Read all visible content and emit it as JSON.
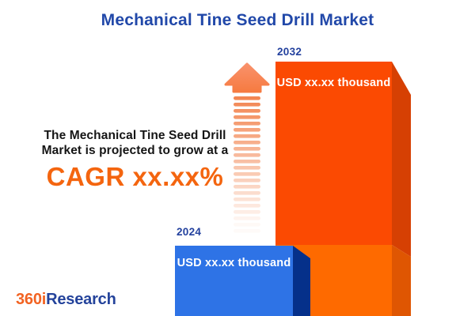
{
  "title": "Mechanical Tine Seed Drill Market",
  "description": {
    "line1": "The Mechanical Tine Seed Drill",
    "line2": "Market is projected to grow at a",
    "cagr": "CAGR xx.xx%"
  },
  "chart_data": {
    "type": "bar",
    "title": "Mechanical Tine Seed Drill Market",
    "categories": [
      "2024",
      "2032"
    ],
    "values": [
      "xx.xx",
      "xx.xx"
    ],
    "unit": "USD thousand",
    "value_labels": [
      "USD xx.xx thousand",
      "USD xx.xx thousand"
    ],
    "annotations": [
      "The Mechanical Tine Seed Drill Market is projected to grow at a CAGR xx.xx%"
    ],
    "legend": false,
    "grid": false,
    "bar_height_ratio_hint": [
      89,
      322
    ]
  },
  "bars": {
    "b2024": {
      "year": "2024",
      "value_label": "USD xx.xx thousand"
    },
    "b2032": {
      "year": "2032",
      "value_label": "USD xx.xx thousand"
    }
  },
  "arrow": {
    "meaning": "growth-upward-arrow",
    "stripe_count": 22,
    "stripe_color": "#F28049"
  },
  "logo": {
    "part1": "360i",
    "part2": "Research"
  },
  "colors": {
    "title-blue": "#2148A9",
    "label-navy": "#23419E",
    "text-black": "#151515",
    "cagr-orange": "#F4650F",
    "bar2032-front-top": "#FB4A02",
    "bar2032-front-bottom": "#FE6A00",
    "bar2032-side-top": "#D64003",
    "bar2032-side-bottom": "#DF5602",
    "bar2024-front": "#2E73E6",
    "bar2024-side": "#05308A",
    "arrow-head-top": "#F9916B",
    "arrow-head-bottom": "#F67B41",
    "arrow-stripe": "#F28049",
    "logo-orange": "#F26322",
    "logo-blue": "#24439B",
    "value-text": "#FFFFFF",
    "background": "#FFFFFF"
  }
}
